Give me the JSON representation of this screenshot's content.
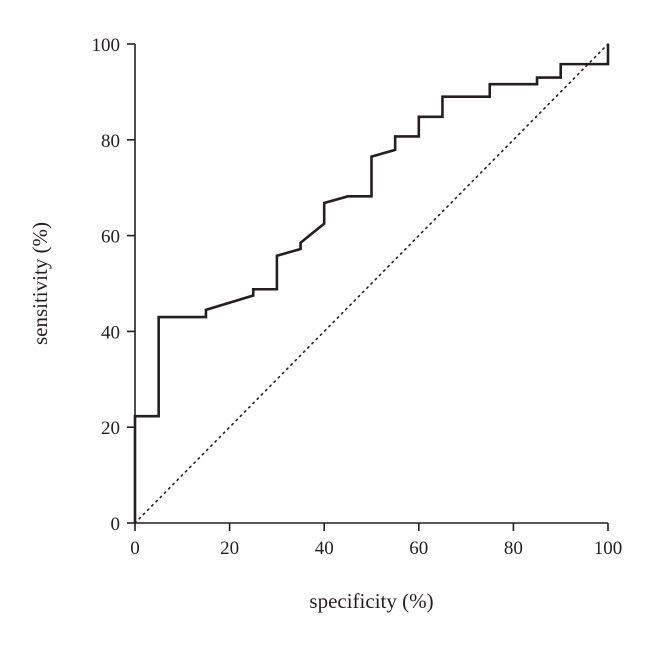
{
  "chart_data": {
    "type": "line",
    "xlabel": "specificity (%)",
    "ylabel": "sensitivity (%)",
    "xlim": [
      0,
      100
    ],
    "ylim": [
      0,
      100
    ],
    "xticks": [
      0,
      20,
      40,
      60,
      80,
      100
    ],
    "yticks": [
      0,
      20,
      40,
      60,
      80,
      100
    ],
    "grid": false,
    "legend": "none",
    "colors": {
      "curve": "#231f20",
      "reference": "#231f20",
      "axis": "#231f20"
    },
    "series": [
      {
        "style": "solid step",
        "x": [
          0,
          0,
          5,
          5,
          15,
          15,
          25,
          25,
          30,
          30,
          35,
          35,
          40,
          40,
          45,
          50,
          50,
          55,
          55,
          60,
          60,
          65,
          65,
          75,
          75,
          85,
          85,
          90,
          90,
          100,
          100
        ],
        "y": [
          0,
          22.3,
          22.3,
          43,
          43,
          44.5,
          47.5,
          48.8,
          48.8,
          55.8,
          57.2,
          58.5,
          62.5,
          66.8,
          68.2,
          68.2,
          76.5,
          77.9,
          80.7,
          80.7,
          84.8,
          84.8,
          89,
          89,
          91.6,
          91.6,
          93,
          93,
          95.8,
          95.8,
          100
        ]
      },
      {
        "style": "dotted diagonal",
        "x": [
          0,
          100
        ],
        "y": [
          0,
          100
        ]
      }
    ]
  }
}
